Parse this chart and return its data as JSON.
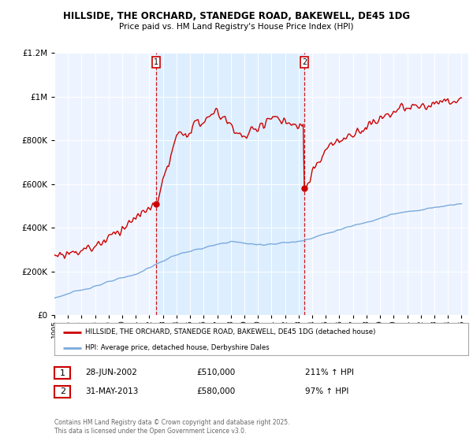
{
  "title": "HILLSIDE, THE ORCHARD, STANEDGE ROAD, BAKEWELL, DE45 1DG",
  "subtitle": "Price paid vs. HM Land Registry's House Price Index (HPI)",
  "sale1_date": "28-JUN-2002",
  "sale1_price": 510000,
  "sale1_hpi": "211% ↑ HPI",
  "sale2_date": "31-MAY-2013",
  "sale2_price": 580000,
  "sale2_hpi": "97% ↑ HPI",
  "legend_line1": "HILLSIDE, THE ORCHARD, STANEDGE ROAD, BAKEWELL, DE45 1DG (detached house)",
  "legend_line2": "HPI: Average price, detached house, Derbyshire Dales",
  "footer": "Contains HM Land Registry data © Crown copyright and database right 2025.\nThis data is licensed under the Open Government Licence v3.0.",
  "red_color": "#cc0000",
  "blue_color": "#7aaadd",
  "fill_color": "#ddeeff",
  "plot_bg": "#eef4ff",
  "ylim": [
    0,
    1200000
  ],
  "yticks": [
    0,
    200000,
    400000,
    600000,
    800000,
    1000000,
    1200000
  ],
  "sale1_year": 2002.5,
  "sale2_year": 2013.42
}
